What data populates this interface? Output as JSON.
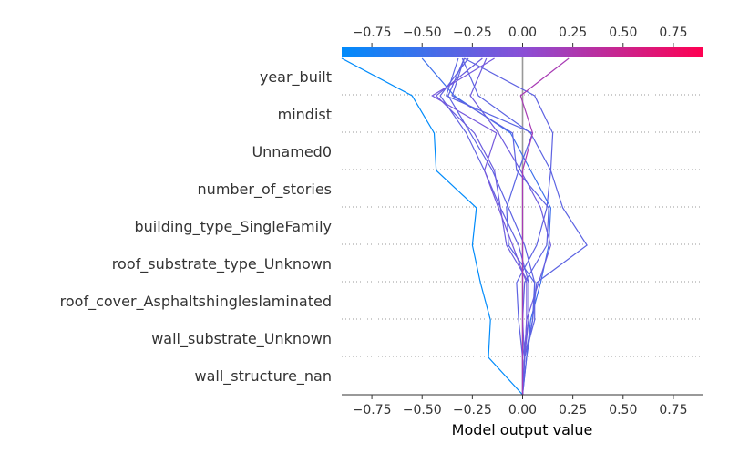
{
  "chart_data": {
    "type": "decision_plot",
    "xlabel": "Model output value",
    "xlim": [
      -0.9,
      0.9
    ],
    "xticks": [
      "−0.75",
      "−0.50",
      "−0.25",
      "0.00",
      "0.25",
      "0.50",
      "0.75"
    ],
    "xtick_values": [
      -0.75,
      -0.5,
      -0.25,
      0.0,
      0.25,
      0.5,
      0.75
    ],
    "base_value": 0.0,
    "features": [
      "year_built",
      "mindist",
      "Unnamed0",
      "number_of_stories",
      "building_type_SingleFamily",
      "roof_substrate_type_Unknown",
      "roof_cover_Asphaltshingleslaminated",
      "wall_substrate_Unknown",
      "wall_structure_nan"
    ],
    "colormap": [
      "#008bfb",
      "#ff0051"
    ],
    "grid": "dotted horizontal",
    "series": [
      {
        "values": [
          0.0,
          -0.17,
          -0.16,
          -0.21,
          -0.25,
          -0.23,
          -0.43,
          -0.44,
          -0.55,
          -0.9
        ]
      },
      {
        "values": [
          0.0,
          0.0,
          -0.02,
          -0.03,
          0.07,
          0.12,
          0.14,
          0.15,
          0.06,
          -0.29
        ]
      },
      {
        "values": [
          0.0,
          0.02,
          0.04,
          0.09,
          0.13,
          0.14,
          0.04,
          -0.06,
          -0.34,
          -0.5
        ]
      },
      {
        "values": [
          0.0,
          0.01,
          0.02,
          0.08,
          0.14,
          0.09,
          -0.01,
          -0.12,
          -0.26,
          -0.18
        ]
      },
      {
        "values": [
          0.0,
          0.01,
          0.06,
          0.06,
          0.01,
          -0.07,
          -0.15,
          -0.26,
          -0.37,
          -0.29
        ]
      },
      {
        "values": [
          0.0,
          0.0,
          0.03,
          0.03,
          -0.02,
          -0.11,
          -0.19,
          -0.28,
          -0.41,
          -0.27
        ]
      },
      {
        "values": [
          0.0,
          0.02,
          0.05,
          0.06,
          -0.07,
          -0.08,
          -0.02,
          0.05,
          -0.38,
          -0.32
        ]
      },
      {
        "values": [
          0.0,
          0.01,
          0.05,
          0.07,
          0.32,
          0.2,
          0.14,
          0.04,
          -0.22,
          -0.3
        ]
      },
      {
        "values": [
          0.0,
          0.01,
          0.03,
          0.03,
          -0.08,
          -0.11,
          -0.14,
          -0.24,
          -0.43,
          -0.2
        ]
      },
      {
        "values": [
          0.0,
          0.01,
          0.02,
          0.02,
          -0.05,
          -0.12,
          -0.19,
          -0.13,
          -0.45,
          -0.14
        ]
      },
      {
        "values": [
          0.0,
          0.01,
          0.0,
          0.01,
          0.12,
          0.13,
          -0.03,
          -0.05,
          -0.35,
          -0.29
        ]
      },
      {
        "values": [
          0.0,
          0.0,
          0.0,
          0.0,
          0.0,
          0.0,
          0.0,
          0.05,
          -0.01,
          0.23
        ]
      }
    ]
  }
}
